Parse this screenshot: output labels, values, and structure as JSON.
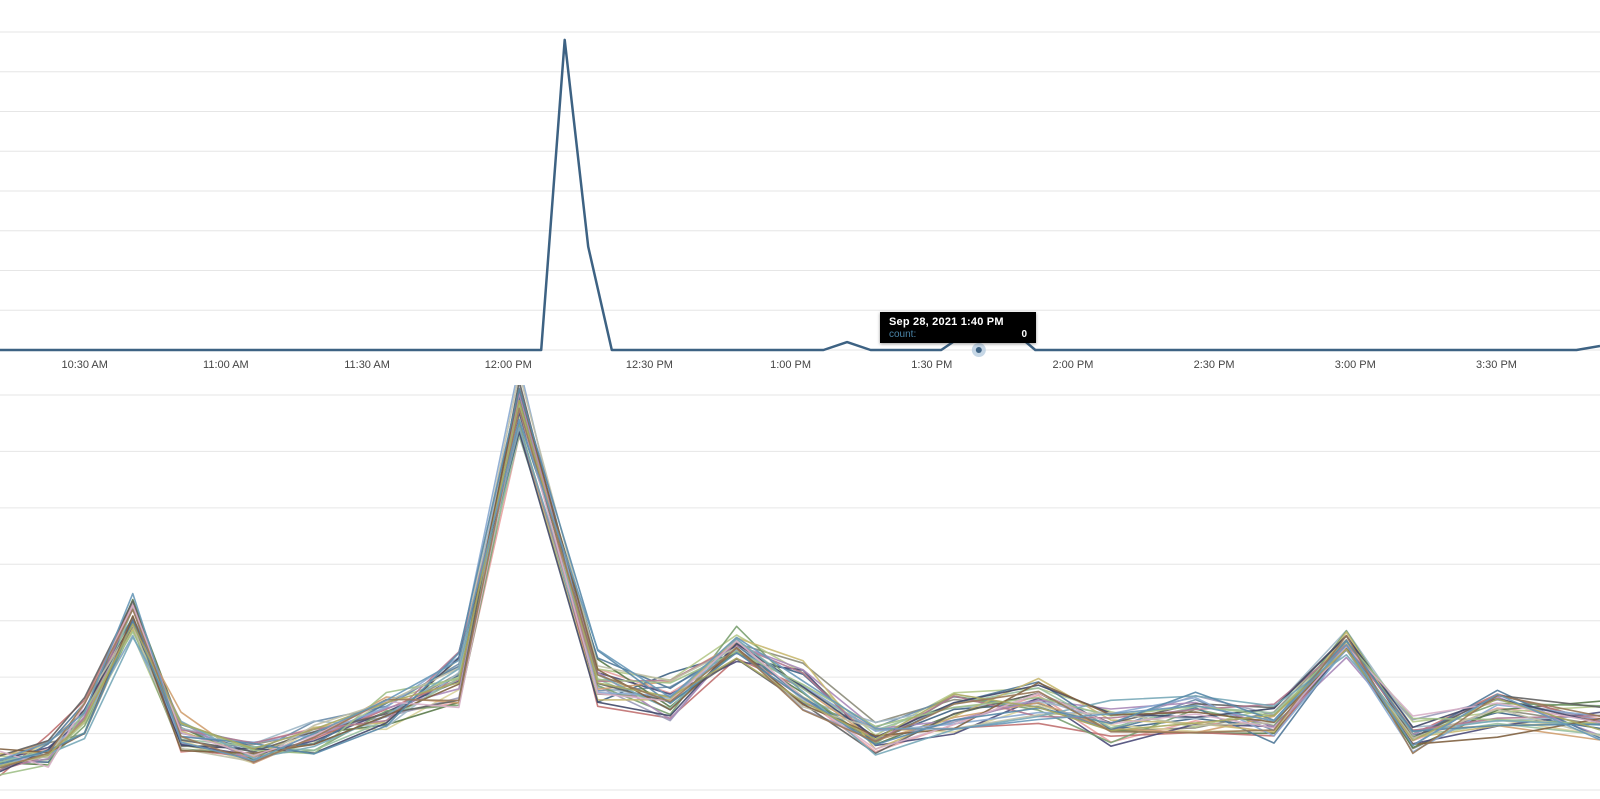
{
  "chart_data": [
    {
      "type": "line",
      "title": "",
      "xlabel": "",
      "ylabel": "",
      "grid": true,
      "x_ticks": [
        "10:30 AM",
        "11:00 AM",
        "11:30 AM",
        "12:00 PM",
        "12:30 PM",
        "1:00 PM",
        "1:30 PM",
        "2:00 PM",
        "2:30 PM",
        "3:00 PM",
        "3:30 PM"
      ],
      "x_tick_minutes": [
        630,
        660,
        690,
        720,
        750,
        780,
        810,
        840,
        870,
        900,
        930
      ],
      "xlim": [
        612,
        952
      ],
      "ylim": [
        0,
        8
      ],
      "series": [
        {
          "color": "#3d6283",
          "x": [
            612,
            617,
            622,
            627,
            632,
            637,
            642,
            647,
            652,
            657,
            662,
            667,
            672,
            677,
            682,
            687,
            692,
            697,
            702,
            707,
            712,
            717,
            722,
            727,
            732,
            737,
            742,
            747,
            752,
            757,
            762,
            767,
            772,
            777,
            782,
            787,
            792,
            797,
            802,
            807,
            812,
            817,
            822,
            827,
            832,
            837,
            842,
            847,
            852,
            857,
            862,
            867,
            872,
            877,
            882,
            887,
            892,
            897,
            902,
            907,
            912,
            917,
            922,
            927,
            932,
            937,
            942,
            947,
            952
          ],
          "values": [
            0,
            0,
            0,
            0,
            0,
            0,
            0,
            0,
            0,
            0,
            0,
            0,
            0,
            0,
            0,
            0,
            0,
            0,
            0,
            0,
            0,
            0,
            0,
            0,
            7.8,
            2.6,
            0,
            0,
            0,
            0,
            0,
            0,
            0,
            0,
            0,
            0,
            0.2,
            0,
            0,
            0,
            0,
            0.4,
            0.25,
            0.5,
            0,
            0,
            0,
            0,
            0,
            0,
            0,
            0,
            0,
            0,
            0,
            0,
            0,
            0,
            0,
            0,
            0,
            0,
            0,
            0,
            0,
            0,
            0,
            0,
            0.1
          ]
        }
      ],
      "hover_point": {
        "x": 820,
        "value": 0
      }
    },
    {
      "type": "line",
      "title": "",
      "xlabel": "",
      "ylabel": "",
      "grid": true,
      "x": [
        612,
        620,
        626,
        634,
        642,
        654,
        664,
        676,
        688,
        698,
        711,
        723,
        734,
        745,
        757,
        770,
        784,
        796,
        810,
        823,
        835,
        846,
        860,
        877
      ],
      "ylim": [
        0,
        7
      ],
      "base_series": [
        0.5,
        0.7,
        1.3,
        3.1,
        1.0,
        0.7,
        0.9,
        1.4,
        2.0,
        6.9,
        2.0,
        1.6,
        2.6,
        1.8,
        0.9,
        1.4,
        1.6,
        1.2,
        1.3,
        1.2,
        2.6,
        1.0,
        1.4,
        1.2
      ],
      "series_colors": [
        "#3d6283",
        "#8b8b7a",
        "#e8a0a0",
        "#b5c98a",
        "#d8d29a",
        "#6a8caa",
        "#5a7a4a",
        "#c07070",
        "#9a9ab8",
        "#4a4a78",
        "#a0b8c8",
        "#7aa070",
        "#d0a070",
        "#a888b8",
        "#507898",
        "#98c0a0",
        "#c8b870",
        "#606060",
        "#88a8d0",
        "#b07890",
        "#404868",
        "#a0c088",
        "#c0c0a8",
        "#78a8b8",
        "#806040",
        "#d8b0c8",
        "#5888a8",
        "#a8a860",
        "#987858",
        "#6898b8"
      ]
    }
  ],
  "tooltip": {
    "title": "Sep 28, 2021 1:40 PM",
    "label": "count:",
    "value": "0"
  }
}
